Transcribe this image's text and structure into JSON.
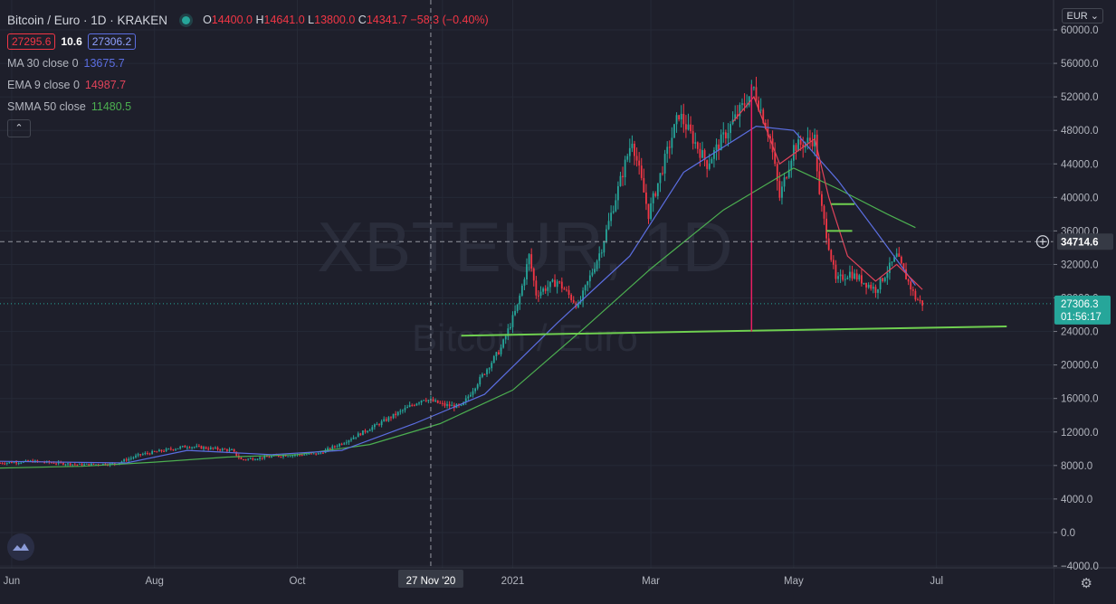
{
  "header": {
    "symbol_title": "Bitcoin / Euro · 1D · KRAKEN",
    "ohlc": {
      "o_label": "O",
      "o": "14400.0",
      "h_label": "H",
      "h": "14641.0",
      "l_label": "L",
      "l": "13800.0",
      "c_label": "C",
      "c": "14341.7",
      "change": "−58.3 (−0.40%)"
    },
    "bid": "27295.6",
    "spread": "10.6",
    "ask": "27306.2"
  },
  "indicators": [
    {
      "label": "MA 30 close 0",
      "value": "13675.7",
      "color": "#5b6ee1"
    },
    {
      "label": "EMA 9 close 0",
      "value": "14987.7",
      "color": "#e0435a"
    },
    {
      "label": "SMMA 50 close",
      "value": "11480.5",
      "color": "#4caf50"
    }
  ],
  "collapse_icon": "chevron-up-icon",
  "currency_selector": "EUR",
  "settings_icon": "gear-icon",
  "logo_icon": "tradingview-cloud-icon",
  "watermark": {
    "line1": "XBTEUR, 1D",
    "line2": "Bitcoin / Euro"
  },
  "crosshair": {
    "price_label": "34714.6",
    "date_label": "27 Nov '20"
  },
  "last_price": {
    "value": "27306.3",
    "countdown": "01:56:17"
  },
  "colors": {
    "background": "#1e1f2b",
    "up": "#26a69a",
    "down": "#f23645",
    "ma": "#5b6ee1",
    "ema": "#e0435a",
    "smma": "#4caf50",
    "trendline": "#6fcf50",
    "vertical_marker": "#e91e63"
  },
  "chart_data": {
    "type": "candlestick",
    "ylim": [
      -4000,
      60000
    ],
    "y_ticks": [
      "60000.0",
      "56000.0",
      "52000.0",
      "48000.0",
      "44000.0",
      "40000.0",
      "36000.0",
      "32000.0",
      "28000.0",
      "24000.0",
      "20000.0",
      "16000.0",
      "12000.0",
      "8000.0",
      "4000.0",
      "0.0",
      "−4000.0"
    ],
    "y_tick_values": [
      60000,
      56000,
      52000,
      48000,
      44000,
      40000,
      36000,
      32000,
      28000,
      24000,
      20000,
      16000,
      12000,
      8000,
      4000,
      0,
      -4000
    ],
    "x_ticks": [
      "Jun",
      "Aug",
      "Oct",
      "2",
      "2021",
      "Mar",
      "May",
      "Jul"
    ],
    "x_tick_dates": [
      "2020-06-01",
      "2020-08-01",
      "2020-10-01",
      "2020-12-02",
      "2021-01-01",
      "2021-03-01",
      "2021-05-01",
      "2021-07-01"
    ],
    "x_range": [
      "2020-05-27",
      "2021-08-20"
    ],
    "price_series": [
      [
        "2020-05-27",
        8300
      ],
      [
        "2020-06-10",
        8500
      ],
      [
        "2020-06-30",
        8100
      ],
      [
        "2020-07-15",
        8200
      ],
      [
        "2020-07-26",
        9300
      ],
      [
        "2020-08-15",
        10300
      ],
      [
        "2020-09-03",
        9800
      ],
      [
        "2020-09-07",
        8700
      ],
      [
        "2020-09-25",
        9200
      ],
      [
        "2020-10-10",
        9400
      ],
      [
        "2020-10-21",
        10800
      ],
      [
        "2020-11-05",
        13000
      ],
      [
        "2020-11-24",
        16000
      ],
      [
        "2020-12-03",
        15200
      ],
      [
        "2020-12-10",
        15000
      ],
      [
        "2020-12-16",
        17500
      ],
      [
        "2020-12-27",
        22000
      ],
      [
        "2021-01-03",
        27000
      ],
      [
        "2021-01-08",
        33000
      ],
      [
        "2021-01-11",
        28500
      ],
      [
        "2021-01-20",
        30000
      ],
      [
        "2021-01-29",
        27000
      ],
      [
        "2021-02-08",
        34000
      ],
      [
        "2021-02-14",
        40000
      ],
      [
        "2021-02-21",
        47000
      ],
      [
        "2021-02-28",
        38000
      ],
      [
        "2021-03-13",
        50000
      ],
      [
        "2021-03-25",
        44000
      ],
      [
        "2021-04-05",
        49000
      ],
      [
        "2021-04-14",
        53000
      ],
      [
        "2021-04-21",
        47000
      ],
      [
        "2021-04-25",
        40000
      ],
      [
        "2021-05-01",
        46000
      ],
      [
        "2021-05-10",
        47000
      ],
      [
        "2021-05-12",
        40000
      ],
      [
        "2021-05-19",
        30000
      ],
      [
        "2021-05-25",
        31000
      ],
      [
        "2021-06-05",
        29000
      ],
      [
        "2021-06-14",
        33000
      ],
      [
        "2021-06-22",
        28000
      ],
      [
        "2021-06-25",
        27306
      ]
    ],
    "ma30_series": [
      [
        "2020-05-27",
        8500
      ],
      [
        "2020-07-20",
        8300
      ],
      [
        "2020-08-15",
        9800
      ],
      [
        "2020-09-20",
        9300
      ],
      [
        "2020-10-20",
        9800
      ],
      [
        "2020-11-20",
        13000
      ],
      [
        "2020-12-20",
        16500
      ],
      [
        "2021-01-20",
        25000
      ],
      [
        "2021-02-20",
        33000
      ],
      [
        "2021-03-15",
        43000
      ],
      [
        "2021-04-15",
        48500
      ],
      [
        "2021-05-01",
        48000
      ],
      [
        "2021-05-20",
        42000
      ],
      [
        "2021-06-05",
        36000
      ],
      [
        "2021-06-22",
        29500
      ]
    ],
    "ema9_series": [
      [
        "2021-04-05",
        49000
      ],
      [
        "2021-04-14",
        52000
      ],
      [
        "2021-04-25",
        44000
      ],
      [
        "2021-05-10",
        47000
      ],
      [
        "2021-05-16",
        40000
      ],
      [
        "2021-05-24",
        33000
      ],
      [
        "2021-06-05",
        30000
      ],
      [
        "2021-06-14",
        32000
      ],
      [
        "2021-06-25",
        29000
      ]
    ],
    "smma50_series": [
      [
        "2020-05-27",
        7700
      ],
      [
        "2020-07-01",
        7900
      ],
      [
        "2020-08-01",
        8400
      ],
      [
        "2020-09-01",
        9000
      ],
      [
        "2020-10-01",
        9300
      ],
      [
        "2020-11-01",
        10500
      ],
      [
        "2020-12-01",
        13000
      ],
      [
        "2021-01-01",
        17000
      ],
      [
        "2021-02-01",
        24500
      ],
      [
        "2021-03-01",
        31500
      ],
      [
        "2021-04-01",
        38500
      ],
      [
        "2021-05-01",
        43500
      ],
      [
        "2021-05-20",
        41000
      ],
      [
        "2021-06-10",
        38000
      ],
      [
        "2021-06-22",
        36400
      ]
    ],
    "trendline": [
      [
        "2020-12-10",
        23500
      ],
      [
        "2021-07-31",
        24600
      ]
    ],
    "vertical_marker": {
      "date": "2021-04-13",
      "from": 24000,
      "to": 53500
    },
    "short_lines": [
      {
        "from": "2021-05-17",
        "to": "2021-05-27",
        "value": 39200
      },
      {
        "from": "2021-05-15",
        "to": "2021-05-26",
        "value": 36000
      }
    ],
    "crosshair": {
      "date": "2020-11-27",
      "value": 34714.6
    },
    "last_price": 27306.3
  }
}
